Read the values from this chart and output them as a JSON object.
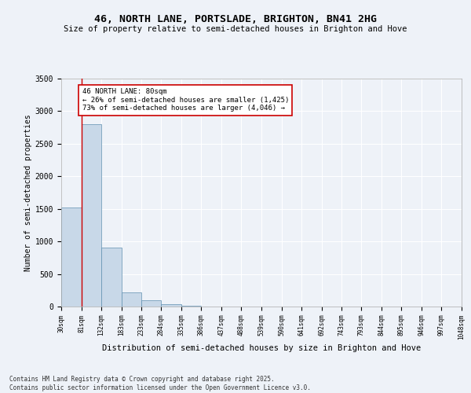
{
  "title_line1": "46, NORTH LANE, PORTSLADE, BRIGHTON, BN41 2HG",
  "title_line2": "Size of property relative to semi-detached houses in Brighton and Hove",
  "xlabel": "Distribution of semi-detached houses by size in Brighton and Hove",
  "ylabel": "Number of semi-detached properties",
  "bar_color": "#c8d8e8",
  "bar_edge_color": "#6090b0",
  "highlight_color": "#cc0000",
  "background_color": "#eef2f8",
  "grid_color": "#ffffff",
  "bins": [
    30,
    81,
    132,
    183,
    233,
    284,
    335,
    386,
    437,
    488,
    539,
    590,
    641,
    692,
    743,
    793,
    844,
    895,
    946,
    997,
    1048
  ],
  "bin_labels": [
    "30sqm",
    "81sqm",
    "132sqm",
    "183sqm",
    "233sqm",
    "284sqm",
    "335sqm",
    "386sqm",
    "437sqm",
    "488sqm",
    "539sqm",
    "590sqm",
    "641sqm",
    "692sqm",
    "743sqm",
    "793sqm",
    "844sqm",
    "895sqm",
    "946sqm",
    "997sqm",
    "1048sqm"
  ],
  "values": [
    1525,
    2800,
    900,
    215,
    100,
    40,
    15,
    3,
    1,
    0,
    0,
    0,
    0,
    0,
    0,
    0,
    0,
    0,
    0,
    0
  ],
  "annotation_title": "46 NORTH LANE: 80sqm",
  "annotation_line2": "← 26% of semi-detached houses are smaller (1,425)",
  "annotation_line3": "73% of semi-detached houses are larger (4,046) →",
  "vline_x": 81,
  "ylim": [
    0,
    3500
  ],
  "yticks": [
    0,
    500,
    1000,
    1500,
    2000,
    2500,
    3000,
    3500
  ],
  "footnote1": "Contains HM Land Registry data © Crown copyright and database right 2025.",
  "footnote2": "Contains public sector information licensed under the Open Government Licence v3.0."
}
